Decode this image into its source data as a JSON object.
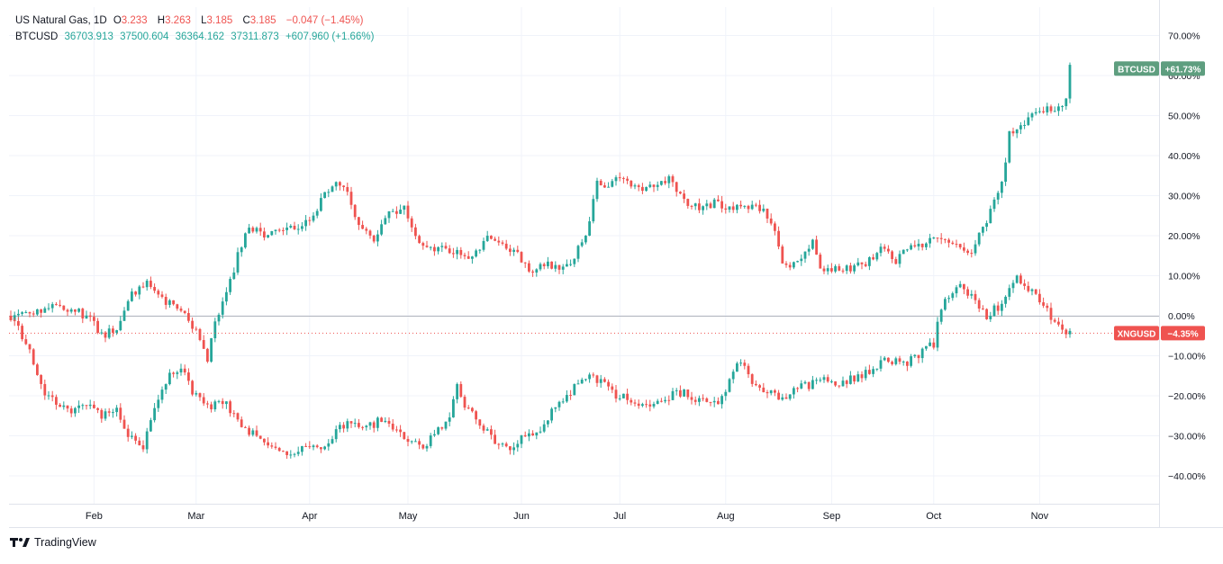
{
  "legend": {
    "series1": {
      "name": "US Natural Gas, 1D",
      "open_label": "O",
      "open": "3.233",
      "high_label": "H",
      "high": "3.263",
      "low_label": "L",
      "low": "3.185",
      "close_label": "C",
      "close": "3.185",
      "change": "−0.047 (−1.45%)"
    },
    "series2": {
      "name": "BTCUSD",
      "open": "36703.913",
      "high": "37500.604",
      "low": "36364.162",
      "close": "37311.873",
      "change": "+607.960 (+1.66%)"
    }
  },
  "branding": "TradingView",
  "colors": {
    "up": "#26a69a",
    "down": "#ef5350",
    "grid": "#f0f3fa",
    "zero_line": "#b2b5be",
    "btc_tag": "#5e9e7f",
    "xng_tag": "#ef5350",
    "axis_text": "#131722",
    "border": "#e0e3eb"
  },
  "chart_data": {
    "type": "candlestick",
    "y_unit": "%",
    "ylim": [
      -45,
      77
    ],
    "y_ticks": [
      "70.00%",
      "60.00%",
      "50.00%",
      "40.00%",
      "30.00%",
      "20.00%",
      "10.00%",
      "0.00%",
      "−10.00%",
      "−20.00%",
      "−30.00%",
      "−40.00%"
    ],
    "y_tick_values": [
      70,
      60,
      50,
      40,
      30,
      20,
      10,
      0,
      -10,
      -20,
      -30,
      -40
    ],
    "x_ticks": [
      "Feb",
      "Mar",
      "Apr",
      "May",
      "Jun",
      "Jul",
      "Aug",
      "Sep",
      "Oct",
      "Nov"
    ],
    "x_tick_day_index": [
      22,
      49,
      79,
      105,
      135,
      161,
      189,
      217,
      244,
      272
    ],
    "total_days": 293,
    "grid": true,
    "series": [
      {
        "name": "BTCUSD",
        "last_label": "BTCUSD",
        "last_value_label": "+61.73%",
        "last_value": 61.73,
        "anchors": [
          [
            0,
            0
          ],
          [
            6,
            1
          ],
          [
            12,
            3
          ],
          [
            18,
            1
          ],
          [
            22,
            -2
          ],
          [
            24,
            -5
          ],
          [
            28,
            -3
          ],
          [
            32,
            5
          ],
          [
            36,
            8
          ],
          [
            40,
            4
          ],
          [
            45,
            1
          ],
          [
            48,
            -3
          ],
          [
            50,
            -5
          ],
          [
            52,
            -11
          ],
          [
            54,
            -2
          ],
          [
            57,
            5
          ],
          [
            60,
            15
          ],
          [
            63,
            22
          ],
          [
            68,
            20
          ],
          [
            72,
            21
          ],
          [
            76,
            22
          ],
          [
            80,
            25
          ],
          [
            84,
            32
          ],
          [
            88,
            33
          ],
          [
            92,
            23
          ],
          [
            96,
            19
          ],
          [
            100,
            26
          ],
          [
            104,
            27
          ],
          [
            108,
            19
          ],
          [
            112,
            17
          ],
          [
            118,
            16
          ],
          [
            122,
            14
          ],
          [
            126,
            20
          ],
          [
            130,
            17
          ],
          [
            134,
            15
          ],
          [
            138,
            11
          ],
          [
            142,
            13
          ],
          [
            146,
            12
          ],
          [
            148,
            13
          ],
          [
            152,
            20
          ],
          [
            155,
            33
          ],
          [
            158,
            33
          ],
          [
            162,
            34
          ],
          [
            166,
            32
          ],
          [
            170,
            33
          ],
          [
            174,
            34
          ],
          [
            178,
            29
          ],
          [
            182,
            27
          ],
          [
            186,
            28
          ],
          [
            190,
            27
          ],
          [
            194,
            28
          ],
          [
            198,
            27
          ],
          [
            202,
            22
          ],
          [
            204,
            12
          ],
          [
            208,
            13
          ],
          [
            212,
            19
          ],
          [
            214,
            12
          ],
          [
            218,
            12
          ],
          [
            222,
            12
          ],
          [
            226,
            13
          ],
          [
            230,
            17
          ],
          [
            234,
            14
          ],
          [
            238,
            17
          ],
          [
            242,
            18
          ],
          [
            246,
            20
          ],
          [
            250,
            18
          ],
          [
            254,
            16
          ],
          [
            258,
            24
          ],
          [
            262,
            33
          ],
          [
            264,
            45
          ],
          [
            268,
            48
          ],
          [
            272,
            52
          ],
          [
            276,
            51
          ],
          [
            279,
            54
          ],
          [
            280,
            62
          ]
        ]
      },
      {
        "name": "XNGUSD",
        "last_label": "XNGUSD",
        "last_value_label": "−4.35%",
        "last_value": -4.35,
        "anchors": [
          [
            0,
            0
          ],
          [
            2,
            -3
          ],
          [
            5,
            -9
          ],
          [
            8,
            -18
          ],
          [
            11,
            -21
          ],
          [
            14,
            -23
          ],
          [
            17,
            -24
          ],
          [
            20,
            -22
          ],
          [
            24,
            -25
          ],
          [
            28,
            -24
          ],
          [
            32,
            -31
          ],
          [
            35,
            -33
          ],
          [
            38,
            -23
          ],
          [
            42,
            -15
          ],
          [
            45,
            -13
          ],
          [
            48,
            -19
          ],
          [
            52,
            -23
          ],
          [
            56,
            -21
          ],
          [
            59,
            -25
          ],
          [
            62,
            -29
          ],
          [
            66,
            -30
          ],
          [
            70,
            -33
          ],
          [
            74,
            -35
          ],
          [
            78,
            -33
          ],
          [
            82,
            -34
          ],
          [
            86,
            -29
          ],
          [
            90,
            -26
          ],
          [
            94,
            -28
          ],
          [
            98,
            -26
          ],
          [
            102,
            -29
          ],
          [
            105,
            -31
          ],
          [
            108,
            -33
          ],
          [
            112,
            -30
          ],
          [
            116,
            -25
          ],
          [
            118,
            -18
          ],
          [
            120,
            -22
          ],
          [
            124,
            -27
          ],
          [
            128,
            -31
          ],
          [
            132,
            -33
          ],
          [
            136,
            -30
          ],
          [
            140,
            -29
          ],
          [
            144,
            -22
          ],
          [
            148,
            -19
          ],
          [
            152,
            -15
          ],
          [
            156,
            -16
          ],
          [
            160,
            -20
          ],
          [
            164,
            -21
          ],
          [
            168,
            -23
          ],
          [
            172,
            -21
          ],
          [
            176,
            -19
          ],
          [
            180,
            -20
          ],
          [
            184,
            -22
          ],
          [
            188,
            -21
          ],
          [
            192,
            -11
          ],
          [
            196,
            -16
          ],
          [
            200,
            -19
          ],
          [
            204,
            -21
          ],
          [
            208,
            -18
          ],
          [
            212,
            -17
          ],
          [
            216,
            -16
          ],
          [
            220,
            -17
          ],
          [
            224,
            -15
          ],
          [
            228,
            -13
          ],
          [
            232,
            -11
          ],
          [
            236,
            -12
          ],
          [
            240,
            -10
          ],
          [
            244,
            -7
          ],
          [
            246,
            2
          ],
          [
            250,
            8
          ],
          [
            254,
            5
          ],
          [
            258,
            0
          ],
          [
            262,
            3
          ],
          [
            266,
            10
          ],
          [
            270,
            6
          ],
          [
            274,
            1
          ],
          [
            278,
            -3
          ],
          [
            280,
            -4.35
          ]
        ]
      }
    ]
  }
}
